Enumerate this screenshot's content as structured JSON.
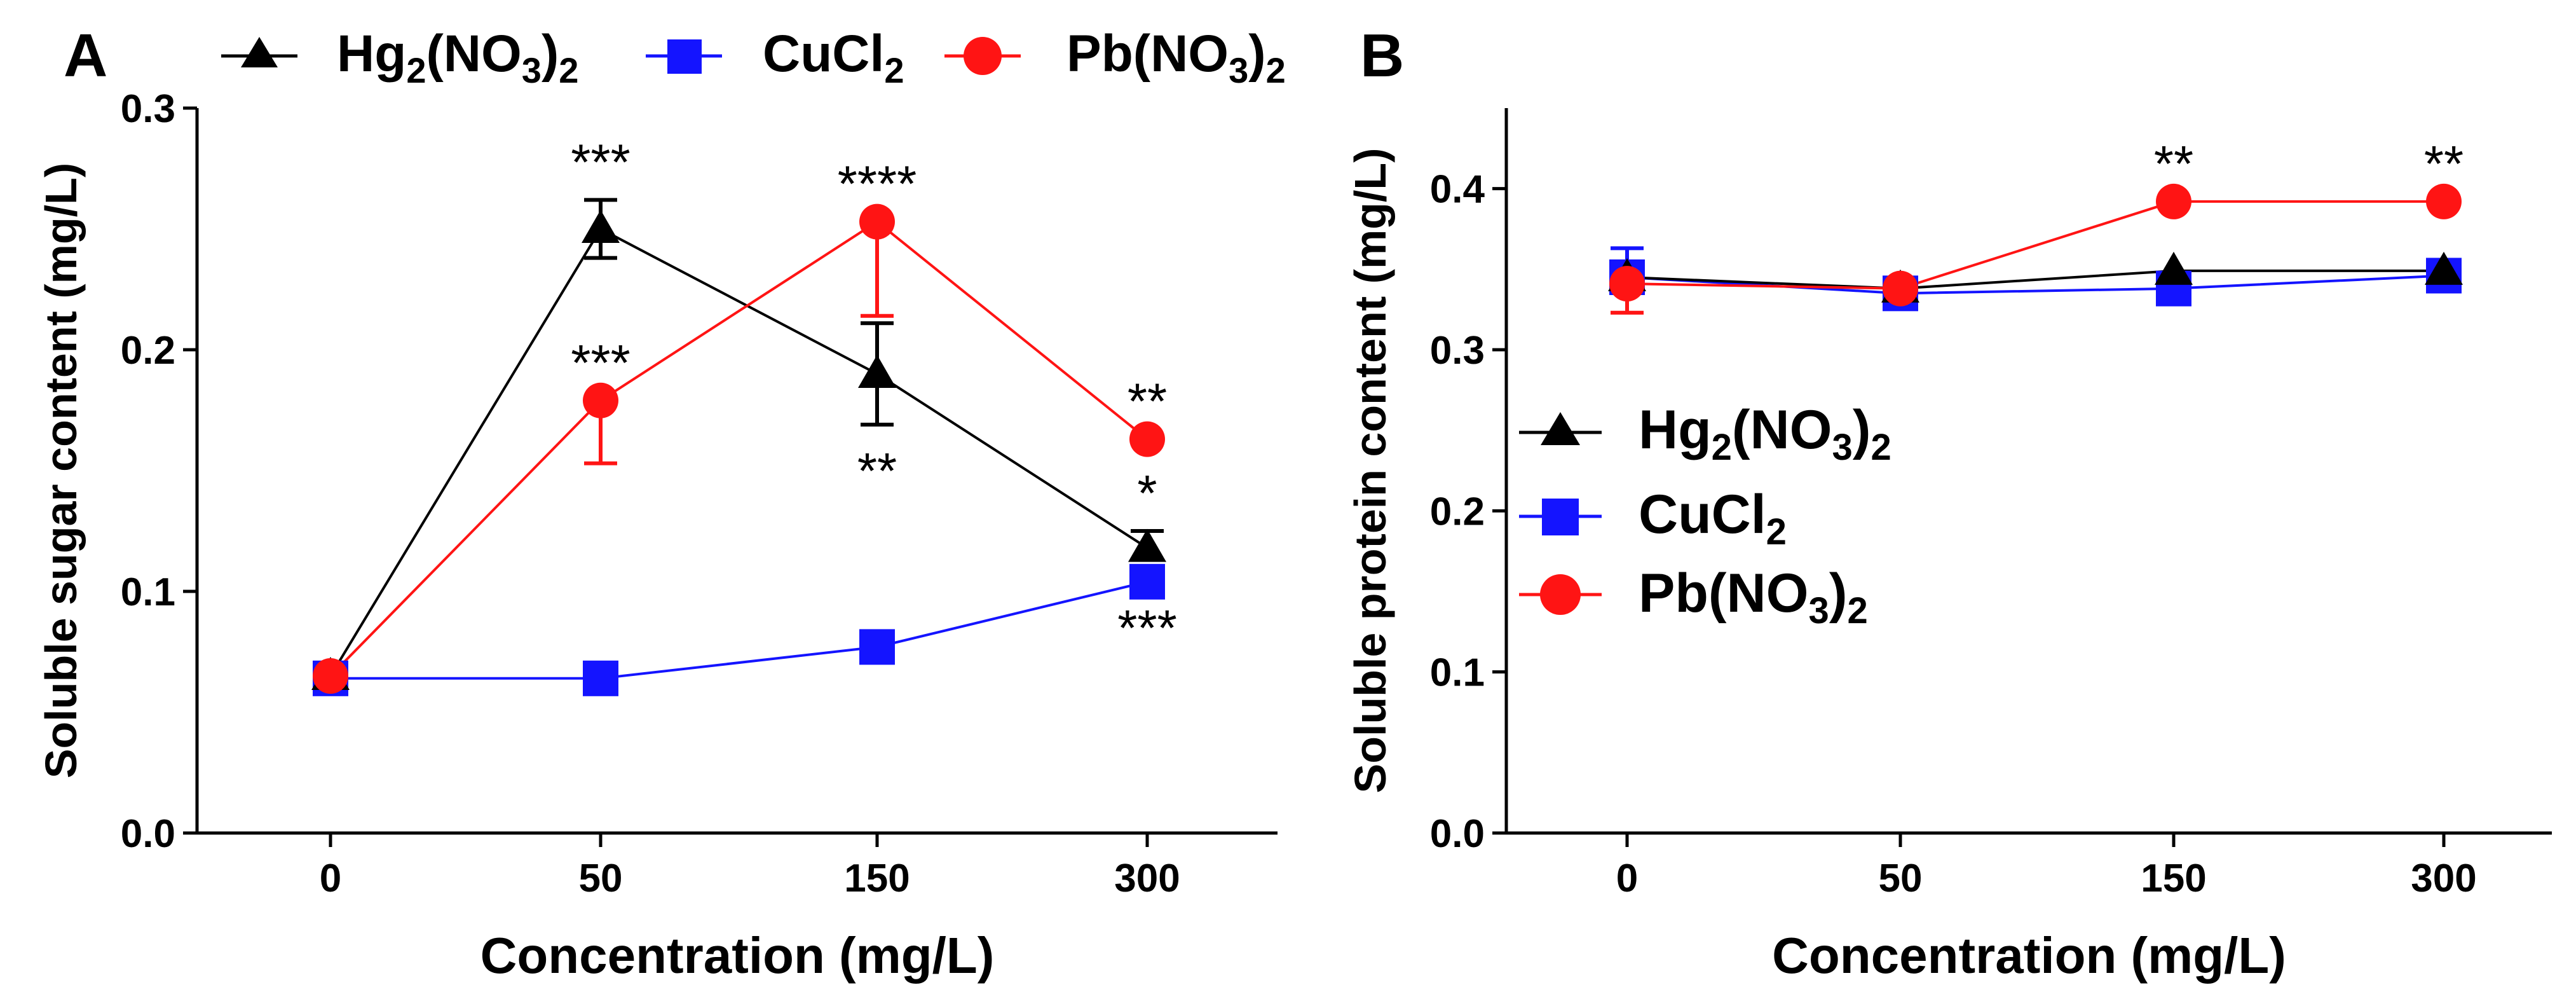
{
  "colors": {
    "hg": "#000000",
    "cu": "#1414ff",
    "pb": "#ff1414"
  },
  "legend": {
    "hg_label": {
      "base": "Hg",
      "sub1": "2",
      "mid": "(NO",
      "sub2": "3",
      "close": ")",
      "sub3": "2"
    },
    "cu_label": {
      "base": "CuCl",
      "sub1": "2"
    },
    "pb_label": {
      "base": "Pb(NO",
      "sub1": "3",
      "close": ")",
      "sub2": "2"
    }
  },
  "chart_data": [
    {
      "type": "line",
      "panel_label": "A",
      "categories": [
        "0",
        "50",
        "150",
        "300"
      ],
      "xlabel": "Concentration (mg/L)",
      "ylabel": "Soluble sugar content (mg/L)",
      "ylim": [
        0,
        0.3
      ],
      "yticks": [
        "0.0",
        "0.1",
        "0.2",
        "0.3"
      ],
      "ytick_values": [
        0,
        0.1,
        0.2,
        0.3
      ],
      "legend_position": "top",
      "series": [
        {
          "key": "hg",
          "marker": "triangle",
          "values": [
            0.065,
            0.25,
            0.19,
            0.118
          ],
          "errors": [
            0.0,
            0.012,
            0.021,
            0.007
          ],
          "error_dir": [
            "none",
            "both",
            "both",
            "up"
          ],
          "significance": [
            "",
            "***",
            "**",
            "*"
          ],
          "sig_position": [
            "",
            "above",
            "below",
            "above"
          ]
        },
        {
          "key": "cu",
          "marker": "square",
          "values": [
            0.064,
            0.064,
            0.077,
            0.104
          ],
          "errors": [
            0,
            0,
            0,
            0
          ],
          "error_dir": [
            "none",
            "none",
            "none",
            "none"
          ],
          "significance": [
            "",
            "",
            "",
            "***"
          ],
          "sig_position": [
            "",
            "",
            "",
            "below"
          ]
        },
        {
          "key": "pb",
          "marker": "circle",
          "values": [
            0.065,
            0.179,
            0.253,
            0.163
          ],
          "errors": [
            0.0,
            0.026,
            0.039,
            0.0
          ],
          "error_dir": [
            "none",
            "down",
            "down",
            "none"
          ],
          "significance": [
            "",
            "***",
            "****",
            "**"
          ],
          "sig_position": [
            "",
            "above",
            "above",
            "above"
          ]
        }
      ]
    },
    {
      "type": "line",
      "panel_label": "B",
      "categories": [
        "0",
        "50",
        "150",
        "300"
      ],
      "xlabel": "Concentration (mg/L)",
      "ylabel": "Soluble protein content (mg/L)",
      "ylim": [
        0,
        0.45
      ],
      "yticks": [
        "0.0",
        "0.1",
        "0.2",
        "0.3",
        "0.4"
      ],
      "ytick_values": [
        0,
        0.1,
        0.2,
        0.3,
        0.4
      ],
      "legend_position": "middle-left",
      "series": [
        {
          "key": "hg",
          "marker": "triangle",
          "values": [
            0.345,
            0.338,
            0.349,
            0.349
          ],
          "errors": [
            0,
            0,
            0,
            0
          ],
          "error_dir": [
            "none",
            "none",
            "none",
            "none"
          ],
          "significance": [
            "",
            "",
            "",
            ""
          ],
          "sig_position": [
            "",
            "",
            "",
            ""
          ]
        },
        {
          "key": "cu",
          "marker": "square",
          "values": [
            0.345,
            0.335,
            0.338,
            0.346
          ],
          "errors": [
            0.018,
            0,
            0,
            0
          ],
          "error_dir": [
            "up",
            "none",
            "none",
            "none"
          ],
          "significance": [
            "",
            "",
            "",
            ""
          ],
          "sig_position": [
            "",
            "",
            "",
            ""
          ]
        },
        {
          "key": "pb",
          "marker": "circle",
          "values": [
            0.341,
            0.338,
            0.392,
            0.392
          ],
          "errors": [
            0.018,
            0,
            0,
            0
          ],
          "error_dir": [
            "down",
            "none",
            "none",
            "none"
          ],
          "significance": [
            "",
            "",
            "**",
            "**"
          ],
          "sig_position": [
            "",
            "",
            "above",
            "above"
          ]
        }
      ]
    }
  ]
}
